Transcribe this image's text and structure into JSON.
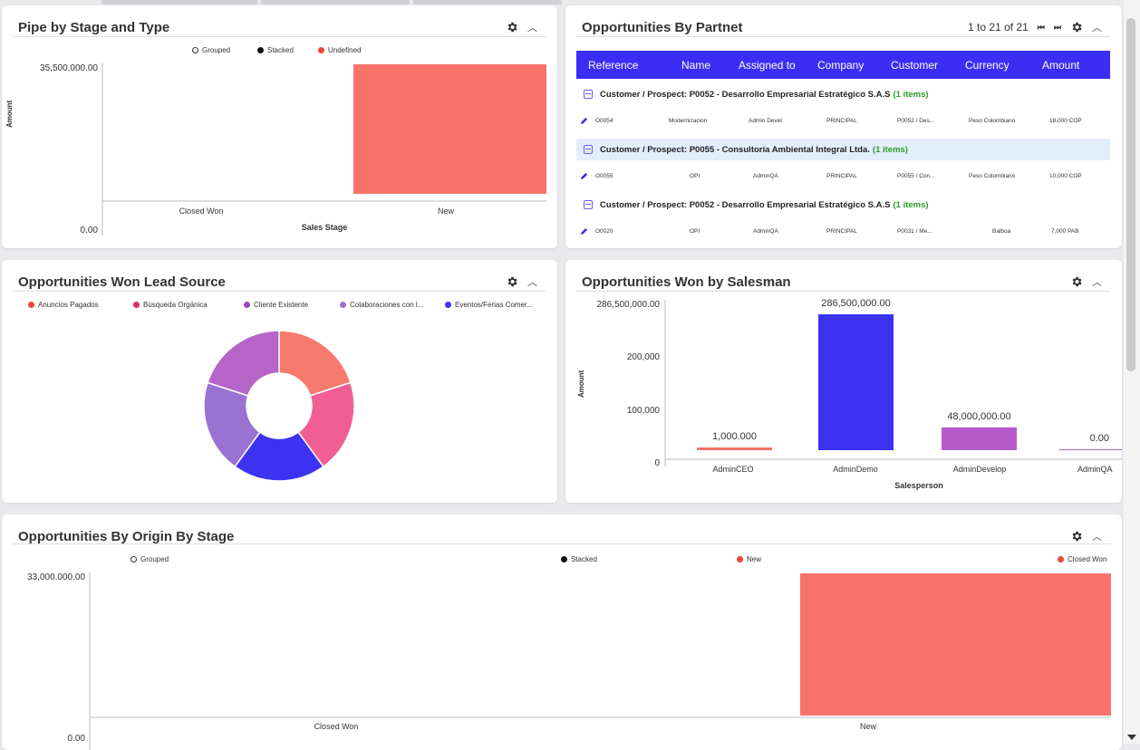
{
  "panels": {
    "pipe": {
      "title": "Pipe by Stage and Type",
      "legend": [
        "Grouped",
        "Stacked",
        "Undefined"
      ],
      "y_label": "Amount",
      "x_label": "Sales Stage",
      "y_ticks": [
        "35,500,000.00",
        "0.00"
      ],
      "categories": [
        "Closed Won",
        "New"
      ]
    },
    "partner": {
      "title": "Opportunities By Partnet",
      "pagination": "1 to 21 of 21",
      "columns": [
        "Reference",
        "Name",
        "Assigned to",
        "Company",
        "Customer",
        "Currency",
        "Amount"
      ],
      "groups": [
        {
          "label": "Customer / Prospect: P0052 - Desarrollo Empresarial Estratégico S.A.S",
          "count": "(1 items)",
          "row": [
            "O0054",
            "Modernizacion",
            "Admin Devel",
            "PRINCIPAL",
            "P0052 / Des...",
            "Peso  Colombiano",
            "18,000 COP"
          ]
        },
        {
          "label": "Customer / Prospect: P0055 - Consultoría Ambiental Integral Ltda.",
          "count": "(1 items)",
          "row": [
            "O0055",
            "OPI",
            "AdminQA",
            "PRINCIPAL",
            "P0055 / Con...",
            "Peso  Colombiano",
            "10,000 COP"
          ]
        },
        {
          "label": "Customer / Prospect: P0052 - Desarrollo Empresarial Estratégico S.A.S",
          "count": "(1 items)",
          "row": [
            "O0020",
            "OPI",
            "AdminQA",
            "PRINCIPAL",
            "P0031 / Me...",
            "Balboa",
            "7,000 PAB"
          ]
        }
      ]
    },
    "lead": {
      "title": "Opportunities Won Lead Source",
      "legend": [
        "Anuncios Pagados",
        "Búsqueda Orgánica",
        "Cliente Existente",
        "Colaboraciones con l...",
        "Eventos/Ferias Comer..."
      ]
    },
    "salesman": {
      "title": "Opportunities Won by Salesman",
      "y_label": "Amount",
      "x_label": "Salesperson",
      "y_ticks": [
        "286,500,000.00",
        "200,000",
        "100,000",
        "0"
      ],
      "bar_labels": [
        "1,000.000",
        "286,500,000.00",
        "48,000,000.00",
        "0.00"
      ],
      "categories": [
        "AdminCEO",
        "AdminDemo",
        "AdminDevelop",
        "AdminQA"
      ]
    },
    "origin": {
      "title": "Opportunities By Origin By Stage",
      "legend": [
        "Grouped",
        "Stacked",
        "New",
        "Closed Won"
      ],
      "y_ticks": [
        "33,000.000.00",
        "0.00"
      ],
      "categories": [
        "Closed Won",
        "New"
      ]
    }
  },
  "chart_data": [
    {
      "type": "bar",
      "title": "Pipe by Stage and Type",
      "xlabel": "Sales Stage",
      "ylabel": "Amount",
      "categories": [
        "Closed Won",
        "New"
      ],
      "series": [
        {
          "name": "Undefined",
          "values": [
            0,
            35500000
          ]
        }
      ],
      "ylim": [
        0,
        35500000
      ],
      "legend": "top",
      "color": "#f7736a"
    },
    {
      "type": "pie",
      "title": "Opportunities Won Lead Source",
      "categories": [
        "Anuncios Pagados",
        "Búsqueda Orgánica",
        "Eventos/Ferias Comer...",
        "Cliente Existente",
        "Colaboraciones con l..."
      ],
      "values": [
        20,
        20,
        20,
        20,
        20
      ],
      "colors": [
        "#f77a6e",
        "#ef5f93",
        "#3c33f2",
        "#9a72d2",
        "#b664c8"
      ],
      "donut": true
    },
    {
      "type": "bar",
      "title": "Opportunities Won by Salesman",
      "xlabel": "Salesperson",
      "ylabel": "Amount",
      "categories": [
        "AdminCEO",
        "AdminDemo",
        "AdminDevelop",
        "AdminQA"
      ],
      "values": [
        1000,
        286500000,
        48000000,
        0
      ],
      "colors": [
        "#f7736a",
        "#3c33f2",
        "#b45bc8",
        "#b45bc8"
      ]
    },
    {
      "type": "bar",
      "title": "Opportunities By Origin By Stage",
      "categories": [
        "Closed Won",
        "New"
      ],
      "series": [
        {
          "name": "New",
          "values": [
            0,
            33000000
          ]
        },
        {
          "name": "Closed Won",
          "values": [
            0,
            0
          ]
        }
      ],
      "ylim": [
        0,
        33000000
      ],
      "legend": "top",
      "color": "#f7736a"
    }
  ],
  "colors": {
    "accent": "#3a2ef5",
    "bar_red": "#f7736a",
    "row_highlight": "#e3eefc",
    "count_green": "#2a9d2a"
  }
}
